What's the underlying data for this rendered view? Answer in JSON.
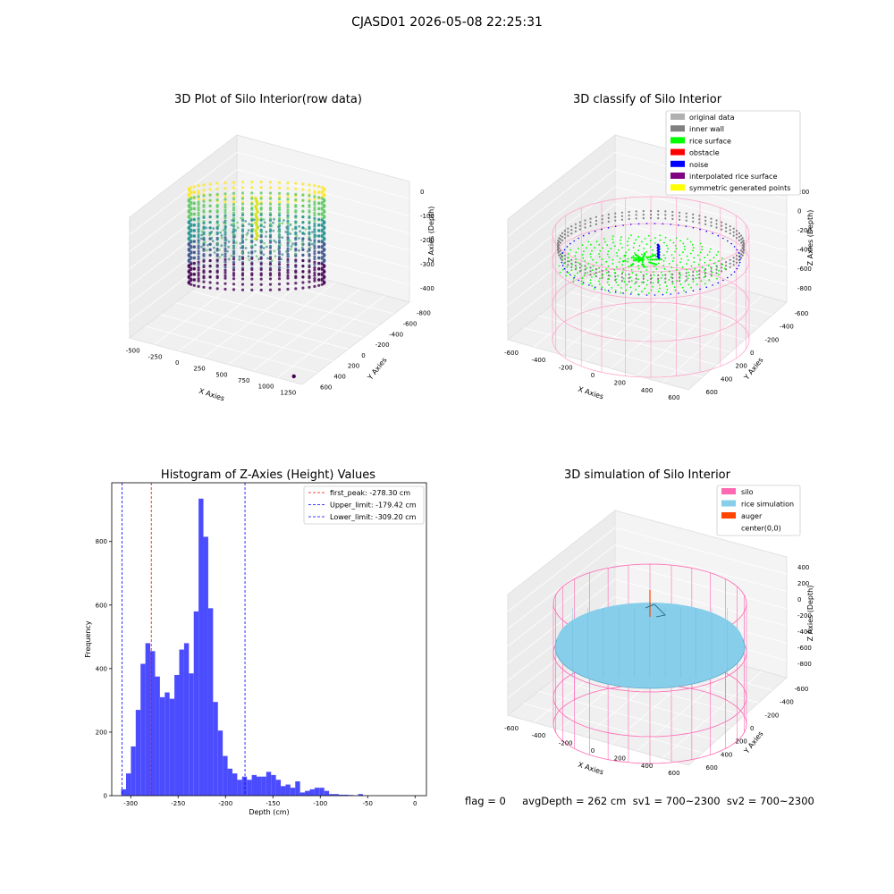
{
  "figure": {
    "suptitle": "CJASD01 2026-05-08 22:25:31",
    "status_line": "flag = 0     avgDepth = 262 cm  sv1 = 700~2300  sv2 = 700~2300"
  },
  "chart_data": [
    {
      "type": "scatter",
      "title": "3D Plot of Silo Interior(row data)",
      "xlabel": "X Axies",
      "ylabel": "Y Axies",
      "zlabel": "Z Axies (Depth)",
      "x_ticks": [
        "-500",
        "-250",
        "0",
        "250",
        "500",
        "750",
        "1000",
        "1250"
      ],
      "y_ticks": [
        "600",
        "400",
        "200",
        "0",
        "-200",
        "-400",
        "-600",
        "-800"
      ],
      "z_ticks": [
        "0",
        "-100",
        "-200",
        "-300",
        "-400"
      ],
      "xlim": [
        -600,
        1350
      ],
      "ylim": [
        -850,
        650
      ],
      "zlim": [
        -450,
        20
      ],
      "colormap": "viridis",
      "outlier_point": {
        "x": 1250,
        "y": -800,
        "z": -400
      }
    },
    {
      "type": "scatter",
      "title": "3D classify of Silo Interior",
      "xlabel": "X Axies",
      "ylabel": "Y Axies",
      "zlabel": "Z Axies (Depth)",
      "x_ticks": [
        "-600",
        "-400",
        "-200",
        "0",
        "200",
        "400",
        "600"
      ],
      "y_ticks": [
        "600",
        "400",
        "200",
        "0",
        "-200",
        "-400",
        "-600"
      ],
      "z_ticks": [
        "200",
        "0",
        "-200",
        "-400",
        "-600",
        "-800"
      ],
      "legend": [
        {
          "label": "original data",
          "color": "#b0b0b0"
        },
        {
          "label": "inner wall",
          "color": "#808080"
        },
        {
          "label": "rice surface",
          "color": "#00ff00"
        },
        {
          "label": "obstacle",
          "color": "#ff0000"
        },
        {
          "label": "noise",
          "color": "#0000ff"
        },
        {
          "label": "interpolated rice surface",
          "color": "#800080"
        },
        {
          "label": "symmetric generated points",
          "color": "#ffff00"
        }
      ],
      "legend_position": "top-right"
    },
    {
      "type": "bar",
      "title": "Histogram of Z-Axies (Height) Values",
      "xlabel": "Depth (cm)",
      "ylabel": "Frequency",
      "xlim": [
        -320,
        12
      ],
      "ylim": [
        0,
        985
      ],
      "x_ticks": [
        -300,
        -250,
        -200,
        -150,
        -100,
        -50,
        0
      ],
      "y_ticks": [
        0,
        200,
        400,
        600,
        800
      ],
      "bin_start": -310,
      "bin_width": 5.1,
      "values": [
        20,
        70,
        155,
        270,
        415,
        480,
        455,
        375,
        310,
        325,
        305,
        380,
        460,
        480,
        385,
        580,
        935,
        815,
        590,
        295,
        205,
        125,
        85,
        70,
        50,
        60,
        50,
        65,
        60,
        60,
        75,
        65,
        50,
        30,
        35,
        25,
        45,
        10,
        15,
        20,
        25,
        25,
        15,
        5,
        5,
        3,
        3,
        2,
        0,
        5
      ],
      "bar_color": "#4c4cff",
      "vlines": [
        {
          "label": "first_peak: -278.30 cm",
          "x": -278.3,
          "color": "#ff0000"
        },
        {
          "label": "Upper_limit: -179.42 cm",
          "x": -179.42,
          "color": "#0000ff"
        },
        {
          "label": "Lower_limit: -309.20 cm",
          "x": -309.2,
          "color": "#0000ff"
        }
      ],
      "legend_position": "top-right"
    },
    {
      "type": "scatter",
      "title": "3D simulation of Silo Interior",
      "xlabel": "X Axies",
      "ylabel": "Y Axies",
      "zlabel": "Z Axies (Depth)",
      "x_ticks": [
        "-600",
        "-400",
        "-200",
        "0",
        "200",
        "400",
        "600"
      ],
      "y_ticks": [
        "600",
        "400",
        "200",
        "0",
        "-200",
        "-400",
        "-600"
      ],
      "z_ticks": [
        "400",
        "200",
        "0",
        "-200",
        "-400",
        "-600",
        "-800"
      ],
      "legend": [
        {
          "label": "silo",
          "color": "#ff69b4"
        },
        {
          "label": "rice simulation",
          "color": "#87ceeb"
        },
        {
          "label": "auger",
          "color": "#ff4500"
        },
        {
          "label": "center(0,0)",
          "color": "#ffffff"
        }
      ],
      "legend_position": "top-right"
    }
  ]
}
